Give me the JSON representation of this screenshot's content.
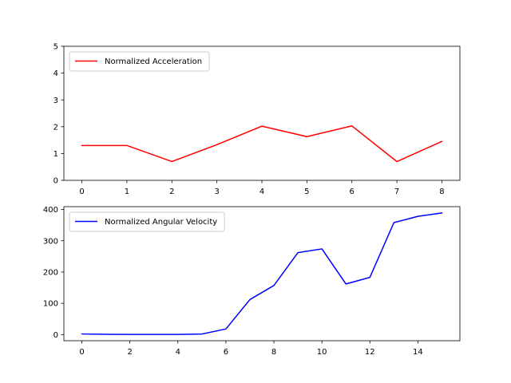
{
  "chart_data": [
    {
      "type": "line",
      "title": "",
      "xlabel": "",
      "ylabel": "",
      "x": [
        0,
        1,
        2,
        3,
        4,
        5,
        6,
        7,
        8
      ],
      "xticks": [
        "0",
        "1",
        "2",
        "3",
        "4",
        "5",
        "6",
        "7",
        "8"
      ],
      "yticks": [
        "0",
        "1",
        "2",
        "3",
        "4",
        "5"
      ],
      "xlim": [
        -0.4,
        8.4
      ],
      "ylim": [
        0,
        5
      ],
      "grid": false,
      "legend_position": "upper-left",
      "series": [
        {
          "name": "Normalized Acceleration",
          "color": "#ff0000",
          "values": [
            1.3,
            1.3,
            0.7,
            1.33,
            2.02,
            1.63,
            2.03,
            0.7,
            1.45
          ]
        }
      ]
    },
    {
      "type": "line",
      "title": "",
      "xlabel": "",
      "ylabel": "",
      "x": [
        0,
        1,
        2,
        3,
        4,
        5,
        6,
        7,
        8,
        9,
        10,
        11,
        12,
        13,
        14,
        15
      ],
      "xticks": [
        "0",
        "2",
        "4",
        "6",
        "8",
        "10",
        "12",
        "14"
      ],
      "yticks": [
        "0",
        "100",
        "200",
        "300",
        "400"
      ],
      "xlim": [
        -0.75,
        15.75
      ],
      "ylim": [
        -19.5,
        409
      ],
      "grid": false,
      "legend_position": "upper-left",
      "series": [
        {
          "name": "Normalized Angular Velocity",
          "color": "#0000ff",
          "values": [
            2,
            1,
            0.5,
            0.5,
            0.5,
            2,
            18,
            112,
            157,
            262,
            274,
            162,
            183,
            358,
            378,
            389
          ]
        }
      ]
    }
  ]
}
